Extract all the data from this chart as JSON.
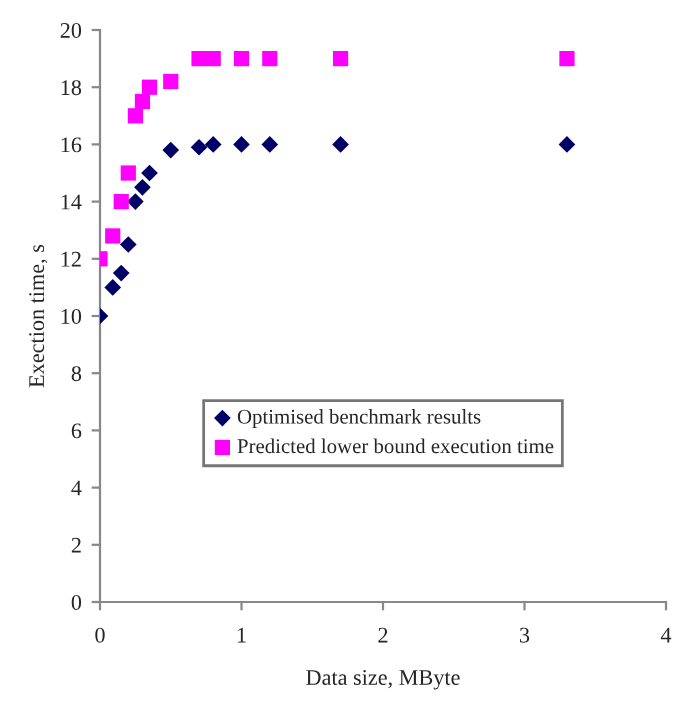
{
  "chart_data": {
    "type": "scatter",
    "xlabel": "Data size, MByte",
    "ylabel": "Exection time, s",
    "xlim": [
      0,
      4
    ],
    "xticks": [
      0,
      1,
      2,
      3,
      4
    ],
    "ylim": [
      0,
      20
    ],
    "yticks": [
      0,
      2,
      4,
      6,
      8,
      10,
      12,
      14,
      16,
      18,
      20
    ],
    "grid": false,
    "legend": "bottom",
    "series": [
      {
        "name": "Optimised benchmark results",
        "color": "#000066",
        "marker": "diamond",
        "x": [
          0,
          0.09,
          0.15,
          0.2,
          0.25,
          0.3,
          0.35,
          0.5,
          0.7,
          0.8,
          1.0,
          1.2,
          1.7,
          3.3
        ],
        "values": [
          10.0,
          11.0,
          11.5,
          12.5,
          14.0,
          14.5,
          15.0,
          15.8,
          15.9,
          16.0,
          16.0,
          16.0,
          16.0,
          16.0
        ]
      },
      {
        "name": "Predicted lower bound execution time",
        "color": "#ff00ff",
        "marker": "square",
        "x": [
          0,
          0.09,
          0.15,
          0.2,
          0.25,
          0.3,
          0.35,
          0.5,
          0.7,
          0.8,
          1.0,
          1.2,
          1.7,
          3.3
        ],
        "values": [
          12.0,
          12.8,
          14.0,
          15.0,
          17.0,
          17.5,
          18.0,
          18.2,
          19.0,
          19.0,
          19.0,
          19.0,
          19.0,
          19.0
        ]
      }
    ]
  }
}
